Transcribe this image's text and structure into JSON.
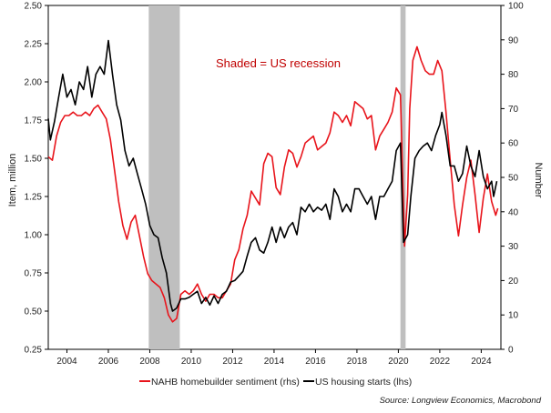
{
  "chart_data": {
    "type": "line",
    "annotation": "Shaded = US recession",
    "source": "Source: Longview Economics, Macrobond",
    "y_left_label": "Item, million",
    "y_right_label": "Number",
    "y_left_range": [
      0.25,
      2.5
    ],
    "y_right_range": [
      0,
      100
    ],
    "x_range": [
      2003.1,
      2024.95
    ],
    "x_ticks": [
      2004,
      2006,
      2008,
      2010,
      2012,
      2014,
      2016,
      2018,
      2020,
      2022,
      2024
    ],
    "x_tick_labels": [
      "2004",
      "2006",
      "2008",
      "2010",
      "2012",
      "2014",
      "2016",
      "2018",
      "2020",
      "2022",
      "2024"
    ],
    "y_left_ticks": [
      "0.25",
      "0.50",
      "0.75",
      "1.00",
      "1.25",
      "1.50",
      "1.75",
      "2.00",
      "2.25",
      "2.50"
    ],
    "y_right_ticks": [
      "0",
      "10",
      "20",
      "30",
      "40",
      "50",
      "60",
      "70",
      "80",
      "90",
      "100"
    ],
    "recessions": [
      {
        "start": 2007.95,
        "end": 2009.45
      },
      {
        "start": 2020.1,
        "end": 2020.35
      }
    ],
    "series": [
      {
        "name": "NAHB homebuilder sentiment (rhs)",
        "axis": "right",
        "color": "#e8141b",
        "points": [
          [
            2003.1,
            56
          ],
          [
            2003.3,
            55
          ],
          [
            2003.5,
            62
          ],
          [
            2003.7,
            66
          ],
          [
            2003.9,
            68
          ],
          [
            2004.1,
            68
          ],
          [
            2004.3,
            69
          ],
          [
            2004.5,
            68
          ],
          [
            2004.7,
            68
          ],
          [
            2004.9,
            69
          ],
          [
            2005.1,
            68
          ],
          [
            2005.3,
            70
          ],
          [
            2005.5,
            71
          ],
          [
            2005.7,
            69
          ],
          [
            2005.9,
            67
          ],
          [
            2006.1,
            61
          ],
          [
            2006.3,
            52
          ],
          [
            2006.5,
            43
          ],
          [
            2006.7,
            36
          ],
          [
            2006.9,
            32
          ],
          [
            2007.1,
            37
          ],
          [
            2007.3,
            39
          ],
          [
            2007.5,
            33
          ],
          [
            2007.7,
            27
          ],
          [
            2007.9,
            22
          ],
          [
            2008.1,
            20
          ],
          [
            2008.3,
            19
          ],
          [
            2008.5,
            18
          ],
          [
            2008.7,
            15
          ],
          [
            2008.9,
            10
          ],
          [
            2009.0,
            9
          ],
          [
            2009.1,
            8
          ],
          [
            2009.3,
            9
          ],
          [
            2009.5,
            16
          ],
          [
            2009.7,
            17
          ],
          [
            2009.9,
            16
          ],
          [
            2010.1,
            17
          ],
          [
            2010.3,
            19
          ],
          [
            2010.5,
            16
          ],
          [
            2010.7,
            14
          ],
          [
            2010.9,
            16
          ],
          [
            2011.1,
            16
          ],
          [
            2011.3,
            15
          ],
          [
            2011.5,
            15
          ],
          [
            2011.7,
            17
          ],
          [
            2011.9,
            19
          ],
          [
            2012.1,
            26
          ],
          [
            2012.3,
            29
          ],
          [
            2012.5,
            35
          ],
          [
            2012.7,
            39
          ],
          [
            2012.9,
            46
          ],
          [
            2013.1,
            44
          ],
          [
            2013.3,
            42
          ],
          [
            2013.5,
            54
          ],
          [
            2013.7,
            57
          ],
          [
            2013.9,
            56
          ],
          [
            2014.1,
            47
          ],
          [
            2014.3,
            45
          ],
          [
            2014.5,
            53
          ],
          [
            2014.7,
            58
          ],
          [
            2014.9,
            57
          ],
          [
            2015.1,
            53
          ],
          [
            2015.3,
            56
          ],
          [
            2015.5,
            60
          ],
          [
            2015.7,
            61
          ],
          [
            2015.9,
            62
          ],
          [
            2016.1,
            58
          ],
          [
            2016.3,
            59
          ],
          [
            2016.5,
            60
          ],
          [
            2016.7,
            63
          ],
          [
            2016.9,
            69
          ],
          [
            2017.1,
            68
          ],
          [
            2017.3,
            66
          ],
          [
            2017.5,
            68
          ],
          [
            2017.7,
            65
          ],
          [
            2017.9,
            72
          ],
          [
            2018.1,
            71
          ],
          [
            2018.3,
            70
          ],
          [
            2018.5,
            67
          ],
          [
            2018.7,
            68
          ],
          [
            2018.9,
            58
          ],
          [
            2019.1,
            62
          ],
          [
            2019.3,
            64
          ],
          [
            2019.5,
            66
          ],
          [
            2019.7,
            69
          ],
          [
            2019.9,
            76
          ],
          [
            2020.1,
            74
          ],
          [
            2020.3,
            30
          ],
          [
            2020.45,
            45
          ],
          [
            2020.55,
            70
          ],
          [
            2020.7,
            84
          ],
          [
            2020.9,
            88
          ],
          [
            2021.1,
            84
          ],
          [
            2021.3,
            81
          ],
          [
            2021.5,
            80
          ],
          [
            2021.7,
            80
          ],
          [
            2021.9,
            84
          ],
          [
            2022.1,
            81
          ],
          [
            2022.3,
            69
          ],
          [
            2022.5,
            55
          ],
          [
            2022.7,
            42
          ],
          [
            2022.9,
            33
          ],
          [
            2023.1,
            42
          ],
          [
            2023.3,
            50
          ],
          [
            2023.5,
            55
          ],
          [
            2023.7,
            45
          ],
          [
            2023.9,
            34
          ],
          [
            2024.1,
            44
          ],
          [
            2024.3,
            51
          ],
          [
            2024.5,
            43
          ],
          [
            2024.7,
            39
          ],
          [
            2024.8,
            41
          ]
        ]
      },
      {
        "name": "US housing starts (lhs)",
        "axis": "left",
        "color": "#000000",
        "points": [
          [
            2003.1,
            1.76
          ],
          [
            2003.2,
            1.62
          ],
          [
            2003.4,
            1.74
          ],
          [
            2003.6,
            1.9
          ],
          [
            2003.8,
            2.05
          ],
          [
            2004.0,
            1.9
          ],
          [
            2004.2,
            1.95
          ],
          [
            2004.4,
            1.85
          ],
          [
            2004.6,
            2.0
          ],
          [
            2004.8,
            1.95
          ],
          [
            2005.0,
            2.1
          ],
          [
            2005.2,
            1.9
          ],
          [
            2005.4,
            2.05
          ],
          [
            2005.6,
            2.1
          ],
          [
            2005.8,
            2.05
          ],
          [
            2006.0,
            2.27
          ],
          [
            2006.2,
            2.05
          ],
          [
            2006.4,
            1.85
          ],
          [
            2006.6,
            1.75
          ],
          [
            2006.8,
            1.55
          ],
          [
            2007.0,
            1.45
          ],
          [
            2007.2,
            1.5
          ],
          [
            2007.4,
            1.4
          ],
          [
            2007.6,
            1.3
          ],
          [
            2007.8,
            1.2
          ],
          [
            2008.0,
            1.06
          ],
          [
            2008.2,
            1.0
          ],
          [
            2008.4,
            0.98
          ],
          [
            2008.6,
            0.85
          ],
          [
            2008.8,
            0.75
          ],
          [
            2009.0,
            0.55
          ],
          [
            2009.1,
            0.5
          ],
          [
            2009.3,
            0.52
          ],
          [
            2009.5,
            0.58
          ],
          [
            2009.7,
            0.58
          ],
          [
            2009.9,
            0.59
          ],
          [
            2010.1,
            0.61
          ],
          [
            2010.3,
            0.63
          ],
          [
            2010.5,
            0.55
          ],
          [
            2010.7,
            0.59
          ],
          [
            2010.9,
            0.54
          ],
          [
            2011.1,
            0.6
          ],
          [
            2011.3,
            0.55
          ],
          [
            2011.5,
            0.61
          ],
          [
            2011.7,
            0.63
          ],
          [
            2011.9,
            0.69
          ],
          [
            2012.1,
            0.7
          ],
          [
            2012.3,
            0.73
          ],
          [
            2012.5,
            0.76
          ],
          [
            2012.7,
            0.86
          ],
          [
            2012.9,
            0.95
          ],
          [
            2013.1,
            0.98
          ],
          [
            2013.3,
            0.9
          ],
          [
            2013.5,
            0.88
          ],
          [
            2013.7,
            0.95
          ],
          [
            2013.9,
            1.05
          ],
          [
            2014.1,
            0.95
          ],
          [
            2014.3,
            1.05
          ],
          [
            2014.5,
            0.98
          ],
          [
            2014.7,
            1.05
          ],
          [
            2014.9,
            1.08
          ],
          [
            2015.1,
            1.0
          ],
          [
            2015.3,
            1.18
          ],
          [
            2015.5,
            1.15
          ],
          [
            2015.7,
            1.2
          ],
          [
            2015.9,
            1.15
          ],
          [
            2016.1,
            1.18
          ],
          [
            2016.3,
            1.16
          ],
          [
            2016.5,
            1.2
          ],
          [
            2016.7,
            1.1
          ],
          [
            2016.9,
            1.3
          ],
          [
            2017.1,
            1.25
          ],
          [
            2017.3,
            1.15
          ],
          [
            2017.5,
            1.2
          ],
          [
            2017.7,
            1.15
          ],
          [
            2017.9,
            1.3
          ],
          [
            2018.1,
            1.3
          ],
          [
            2018.3,
            1.25
          ],
          [
            2018.5,
            1.2
          ],
          [
            2018.7,
            1.25
          ],
          [
            2018.9,
            1.1
          ],
          [
            2019.1,
            1.25
          ],
          [
            2019.3,
            1.25
          ],
          [
            2019.5,
            1.3
          ],
          [
            2019.7,
            1.35
          ],
          [
            2019.9,
            1.55
          ],
          [
            2020.1,
            1.6
          ],
          [
            2020.25,
            0.95
          ],
          [
            2020.45,
            1.0
          ],
          [
            2020.6,
            1.25
          ],
          [
            2020.8,
            1.5
          ],
          [
            2021.0,
            1.55
          ],
          [
            2021.2,
            1.58
          ],
          [
            2021.4,
            1.6
          ],
          [
            2021.6,
            1.55
          ],
          [
            2021.8,
            1.65
          ],
          [
            2022.0,
            1.72
          ],
          [
            2022.1,
            1.8
          ],
          [
            2022.3,
            1.65
          ],
          [
            2022.5,
            1.45
          ],
          [
            2022.7,
            1.45
          ],
          [
            2022.9,
            1.35
          ],
          [
            2023.1,
            1.4
          ],
          [
            2023.3,
            1.58
          ],
          [
            2023.5,
            1.45
          ],
          [
            2023.7,
            1.38
          ],
          [
            2023.9,
            1.55
          ],
          [
            2024.1,
            1.38
          ],
          [
            2024.3,
            1.3
          ],
          [
            2024.5,
            1.35
          ],
          [
            2024.6,
            1.25
          ],
          [
            2024.75,
            1.35
          ]
        ]
      }
    ]
  }
}
